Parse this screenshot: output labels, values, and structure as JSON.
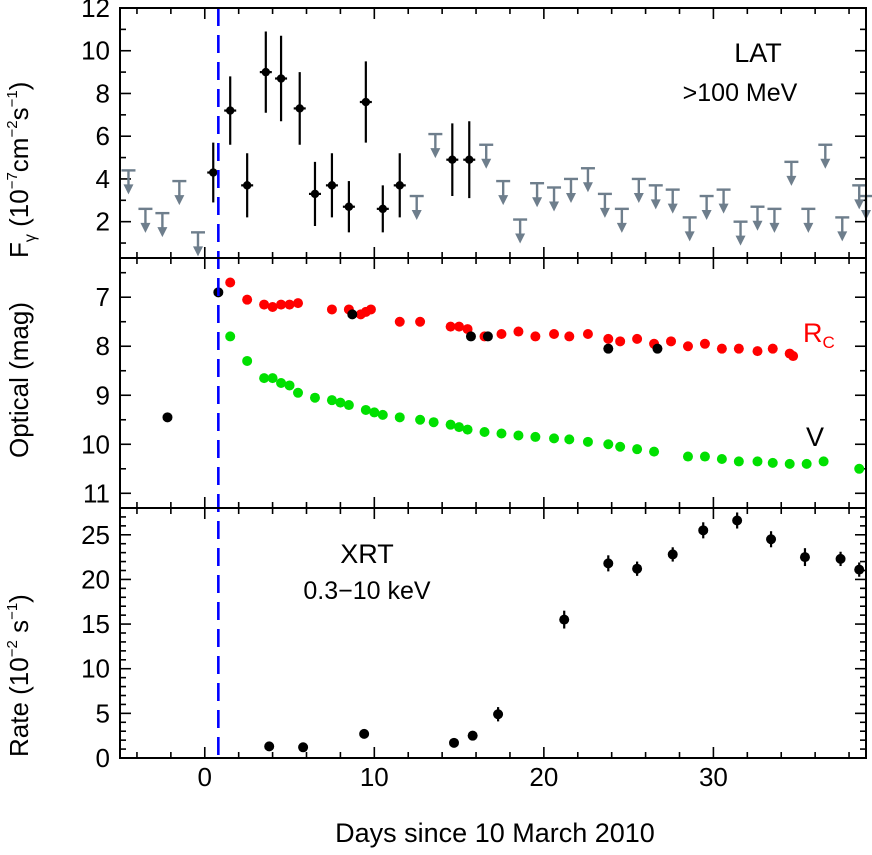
{
  "colors": {
    "detection": "#000000",
    "upper_limit": "#6e7e8c",
    "rc_band": "#ff0000",
    "v_band": "#00e000",
    "marker_line": "#0000ff"
  },
  "chart_data": [
    {
      "type": "scatter",
      "panel": "top",
      "label_main": "LAT",
      "label_sub": ">100 MeV",
      "ylabel_main": "F",
      "ylabel_sub": "γ",
      "ylabel_unit_a": " (10",
      "ylabel_unit_b": "−7",
      "ylabel_unit_c": "cm",
      "ylabel_unit_d": "−2",
      "ylabel_unit_e": "s",
      "ylabel_unit_f": "−1",
      "ylabel_unit_g": ")",
      "xlim": [
        -5,
        39
      ],
      "ylim": [
        0.3,
        12
      ],
      "yticks": [
        2,
        4,
        6,
        8,
        10,
        12
      ],
      "grid": false,
      "series": [
        {
          "kind": "detections",
          "points": [
            {
              "x": 0.5,
              "y": 4.3,
              "err": 1.4
            },
            {
              "x": 1.5,
              "y": 7.2,
              "err": 1.6
            },
            {
              "x": 2.5,
              "y": 3.7,
              "err": 1.5
            },
            {
              "x": 3.6,
              "y": 9.0,
              "err": 1.9
            },
            {
              "x": 4.5,
              "y": 8.7,
              "err": 2.0
            },
            {
              "x": 5.6,
              "y": 7.3,
              "err": 1.7
            },
            {
              "x": 6.5,
              "y": 3.3,
              "err": 1.5
            },
            {
              "x": 7.5,
              "y": 3.7,
              "err": 1.5
            },
            {
              "x": 8.5,
              "y": 2.7,
              "err": 1.2
            },
            {
              "x": 9.5,
              "y": 7.6,
              "err": 1.9
            },
            {
              "x": 10.5,
              "y": 2.6,
              "err": 1.1
            },
            {
              "x": 11.5,
              "y": 3.7,
              "err": 1.5
            },
            {
              "x": 14.6,
              "y": 4.9,
              "err": 1.7
            },
            {
              "x": 15.6,
              "y": 4.9,
              "err": 1.8
            }
          ]
        },
        {
          "kind": "upper_limits",
          "points": [
            {
              "x": -4.5,
              "y": 4.4
            },
            {
              "x": -3.5,
              "y": 2.6
            },
            {
              "x": -2.5,
              "y": 2.4
            },
            {
              "x": -1.5,
              "y": 3.9
            },
            {
              "x": -0.4,
              "y": 1.5
            },
            {
              "x": 12.5,
              "y": 3.2
            },
            {
              "x": 13.6,
              "y": 6.1
            },
            {
              "x": 16.6,
              "y": 5.6
            },
            {
              "x": 17.6,
              "y": 3.9
            },
            {
              "x": 18.6,
              "y": 2.1
            },
            {
              "x": 19.6,
              "y": 3.8
            },
            {
              "x": 20.6,
              "y": 3.6
            },
            {
              "x": 21.6,
              "y": 4.0
            },
            {
              "x": 22.6,
              "y": 4.5
            },
            {
              "x": 23.6,
              "y": 3.3
            },
            {
              "x": 24.6,
              "y": 2.6
            },
            {
              "x": 25.6,
              "y": 4.0
            },
            {
              "x": 26.6,
              "y": 3.7
            },
            {
              "x": 27.6,
              "y": 3.5
            },
            {
              "x": 28.6,
              "y": 2.2
            },
            {
              "x": 29.6,
              "y": 3.2
            },
            {
              "x": 30.6,
              "y": 3.5
            },
            {
              "x": 31.6,
              "y": 2.0
            },
            {
              "x": 32.6,
              "y": 2.7
            },
            {
              "x": 33.6,
              "y": 2.6
            },
            {
              "x": 34.6,
              "y": 4.8
            },
            {
              "x": 35.6,
              "y": 2.6
            },
            {
              "x": 36.6,
              "y": 5.6
            },
            {
              "x": 37.6,
              "y": 2.2
            },
            {
              "x": 38.6,
              "y": 3.7
            },
            {
              "x": 39.0,
              "y": 3.2
            }
          ]
        }
      ]
    },
    {
      "type": "scatter",
      "panel": "middle",
      "ylabel": "Optical (mag)",
      "xlim": [
        -5,
        39
      ],
      "ylim": [
        11.3,
        6.2
      ],
      "yticks": [
        7,
        8,
        9,
        10,
        11
      ],
      "y_inverted": true,
      "grid": false,
      "series": [
        {
          "name": "R",
          "name_sub": "C",
          "color": "#ff0000",
          "x": [
            1.5,
            2.5,
            3.5,
            4.0,
            4.5,
            5.0,
            5.5,
            7.5,
            8.5,
            9.2,
            9.5,
            9.8,
            11.5,
            12.7,
            14.5,
            15.0,
            15.5,
            16.5,
            17.5,
            18.5,
            19.5,
            20.6,
            21.5,
            22.6,
            23.8,
            24.5,
            25.5,
            26.5,
            27.5,
            28.5,
            29.5,
            30.5,
            31.5,
            32.6,
            33.5,
            34.5,
            34.7
          ],
          "y": [
            6.7,
            7.05,
            7.15,
            7.2,
            7.15,
            7.15,
            7.12,
            7.25,
            7.25,
            7.35,
            7.3,
            7.25,
            7.5,
            7.5,
            7.6,
            7.6,
            7.65,
            7.8,
            7.75,
            7.7,
            7.8,
            7.75,
            7.8,
            7.75,
            7.85,
            7.9,
            7.85,
            7.95,
            7.9,
            8.0,
            7.95,
            8.05,
            8.05,
            8.1,
            8.05,
            8.15,
            8.2
          ]
        },
        {
          "name": "V",
          "color": "#00e000",
          "x": [
            1.5,
            2.5,
            3.5,
            4.0,
            4.5,
            5.0,
            5.5,
            6.5,
            7.5,
            8.0,
            8.5,
            9.5,
            10.0,
            10.5,
            11.5,
            12.7,
            13.5,
            14.5,
            15.0,
            15.5,
            16.5,
            17.5,
            18.5,
            19.5,
            20.6,
            21.5,
            22.6,
            23.8,
            24.5,
            25.5,
            26.5,
            28.5,
            29.5,
            30.5,
            31.5,
            32.6,
            33.5,
            34.5,
            35.5,
            36.5,
            38.6
          ],
          "y": [
            7.8,
            8.3,
            8.65,
            8.65,
            8.75,
            8.8,
            8.95,
            9.05,
            9.1,
            9.15,
            9.2,
            9.3,
            9.35,
            9.4,
            9.45,
            9.5,
            9.55,
            9.6,
            9.65,
            9.7,
            9.75,
            9.78,
            9.82,
            9.85,
            9.88,
            9.9,
            9.95,
            10.0,
            10.05,
            10.1,
            10.15,
            10.25,
            10.25,
            10.3,
            10.35,
            10.35,
            10.38,
            10.4,
            10.4,
            10.35,
            10.5
          ]
        },
        {
          "name": "",
          "color": "#000000",
          "x": [
            -2.2,
            0.8,
            8.7,
            15.7,
            16.7,
            23.8,
            26.7
          ],
          "y": [
            9.45,
            6.9,
            7.35,
            7.8,
            7.8,
            8.05,
            8.05
          ]
        }
      ]
    },
    {
      "type": "scatter",
      "panel": "bottom",
      "label_main": "XRT",
      "label_sub": "0.3−10 keV",
      "ylabel_main": "Rate (10",
      "ylabel_unit_a": "−2",
      "ylabel_unit_b": " s",
      "ylabel_unit_c": "−1",
      "ylabel_unit_d": ")",
      "xlabel": "Days since 10 March 2010",
      "xlim": [
        -5,
        39
      ],
      "ylim": [
        0,
        28
      ],
      "yticks": [
        0,
        5,
        10,
        15,
        20,
        25
      ],
      "xticks": [
        0,
        10,
        20,
        30
      ],
      "grid": false,
      "series": [
        {
          "name": "",
          "x": [
            3.8,
            5.8,
            9.4,
            14.7,
            15.8,
            17.3,
            21.2,
            23.8,
            25.5,
            27.6,
            29.4,
            31.4,
            33.4,
            35.4,
            37.5,
            38.6
          ],
          "y": [
            1.3,
            1.2,
            2.7,
            1.7,
            2.5,
            4.9,
            15.5,
            21.8,
            21.2,
            22.8,
            25.5,
            26.6,
            24.5,
            22.5,
            22.3,
            21.1
          ],
          "err": [
            0.4,
            0.4,
            0.5,
            0.4,
            0.5,
            0.8,
            1.0,
            0.9,
            0.8,
            0.8,
            0.9,
            0.9,
            0.9,
            1.0,
            0.8,
            0.8
          ]
        }
      ]
    }
  ],
  "marker_day": 0.8
}
